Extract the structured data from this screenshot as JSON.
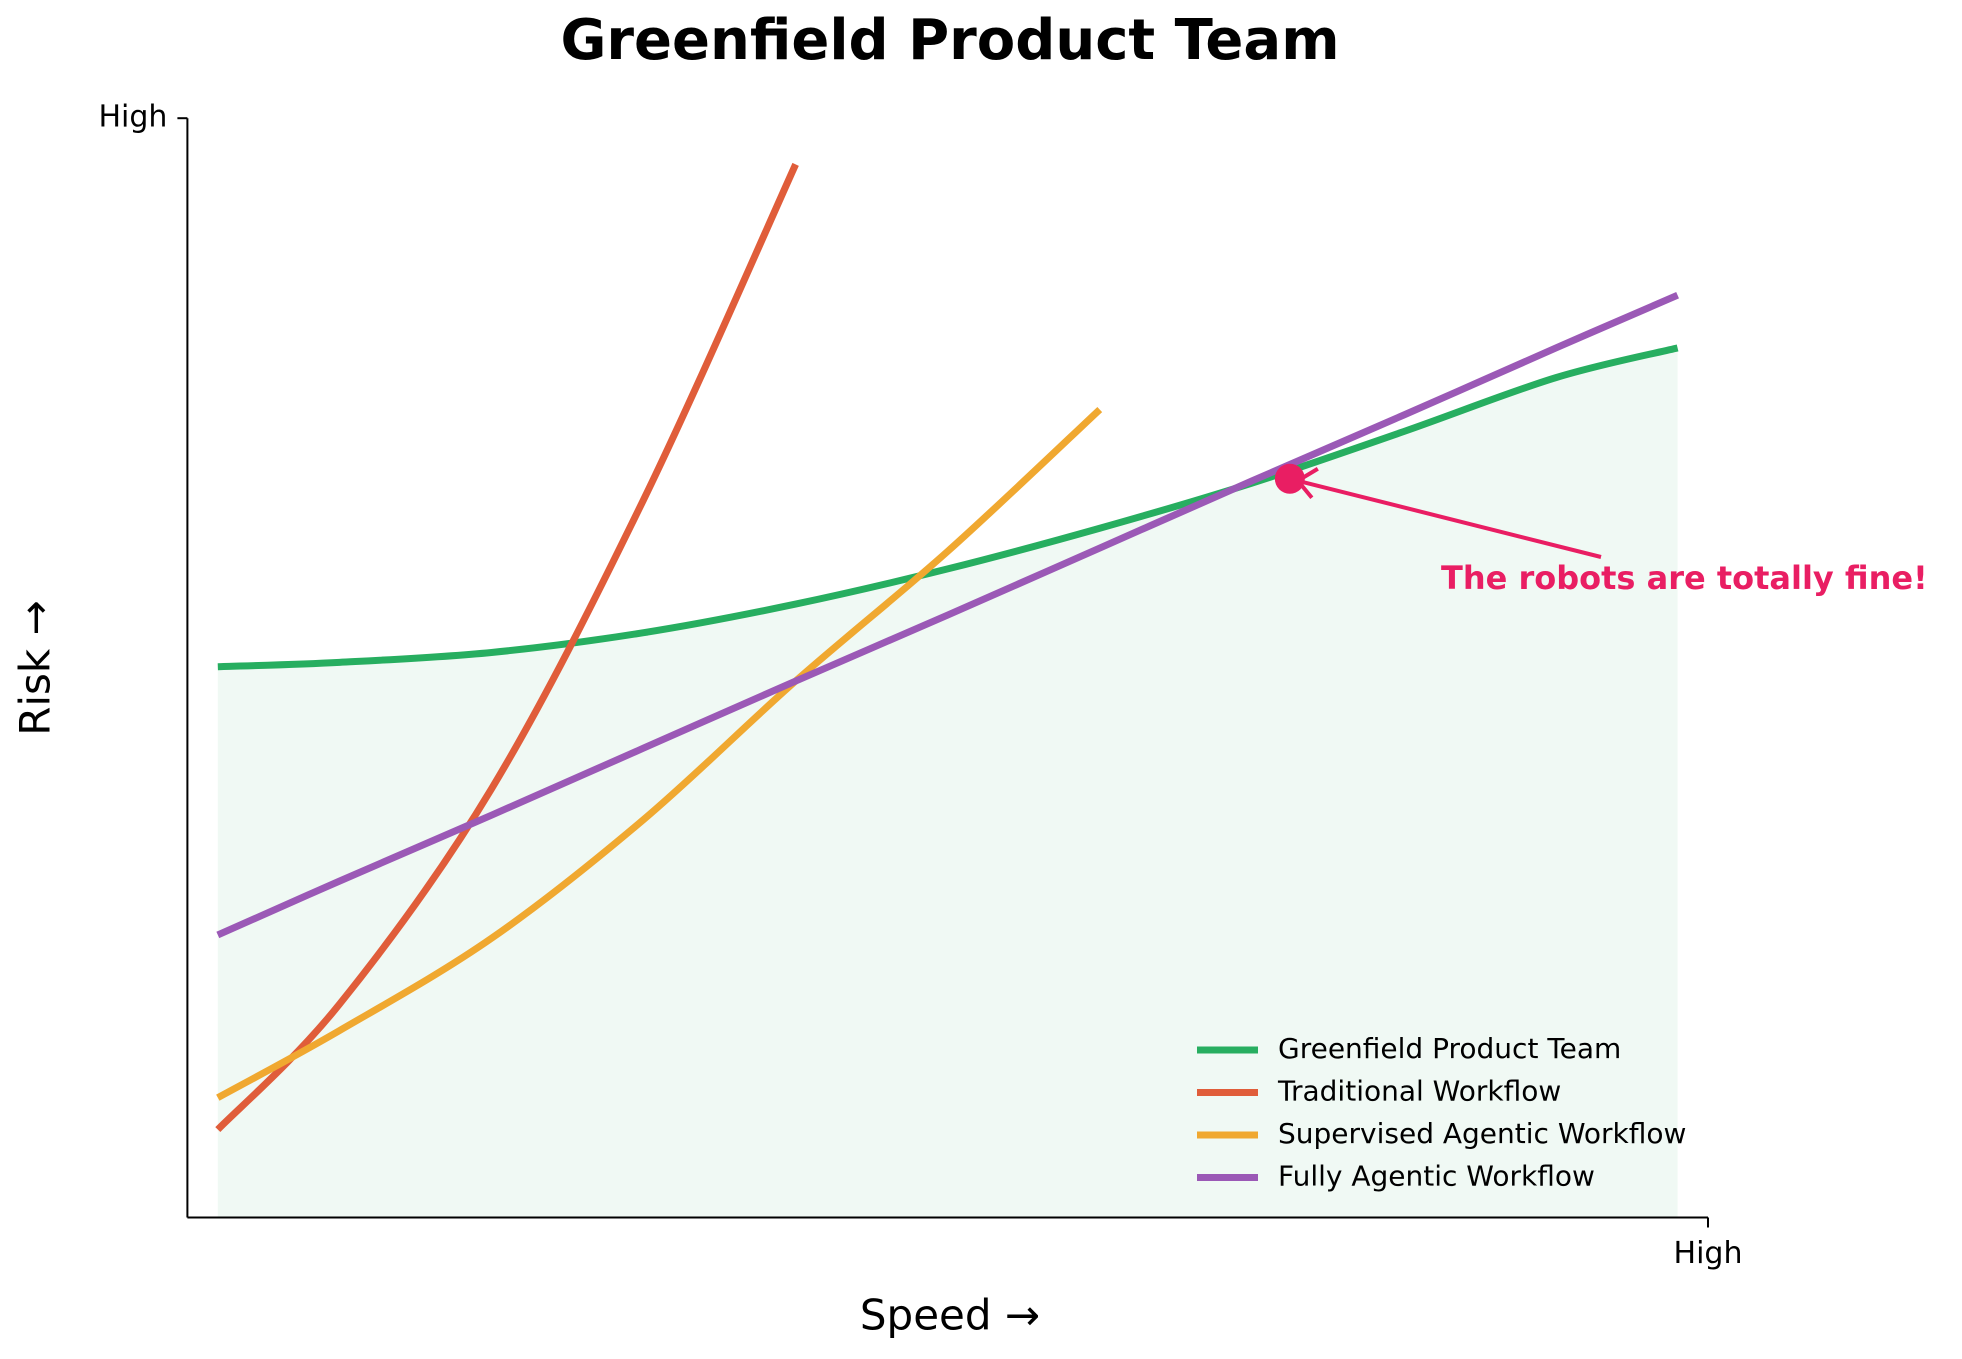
{
  "chart_data": {
    "type": "line",
    "title": "Greenfield Product Team",
    "xlabel": "Speed →",
    "ylabel": "Risk →",
    "x": [
      0.2,
      1,
      2,
      3,
      4,
      5,
      6,
      7,
      8,
      9,
      9.8
    ],
    "xlim": [
      0,
      10
    ],
    "ylim": [
      0,
      10
    ],
    "xticks": [
      {
        "value": 10,
        "label": "High"
      }
    ],
    "yticks": [
      {
        "value": 10,
        "label": "High"
      }
    ],
    "grid": false,
    "legend": "lower right",
    "series": [
      {
        "name": "Greenfield Product Team",
        "color": "#27ae60",
        "fill": true,
        "values": [
          5.01,
          5.05,
          5.14,
          5.32,
          5.58,
          5.9,
          6.27,
          6.68,
          7.15,
          7.64,
          7.91
        ]
      },
      {
        "name": "Traditional Workflow",
        "color": "#e05d3a",
        "values": [
          0.8,
          1.94,
          3.9,
          6.53,
          9.58,
          null,
          null,
          null,
          null,
          null,
          null
        ]
      },
      {
        "name": "Supervised Agentic Workflow",
        "color": "#f0a830",
        "values": [
          1.09,
          1.7,
          2.54,
          3.62,
          4.88,
          6.06,
          7.35,
          null,
          null,
          null,
          null
        ]
      },
      {
        "name": "Fully Agentic Workflow",
        "color": "#9b59b6",
        "values": [
          2.57,
          3.06,
          3.66,
          4.27,
          4.88,
          5.48,
          6.09,
          6.7,
          7.3,
          7.91,
          8.39
        ]
      }
    ],
    "annotation": {
      "text": "The robots are totally fine!",
      "x": 7.25,
      "y": 6.72,
      "color": "#e91e63"
    }
  }
}
